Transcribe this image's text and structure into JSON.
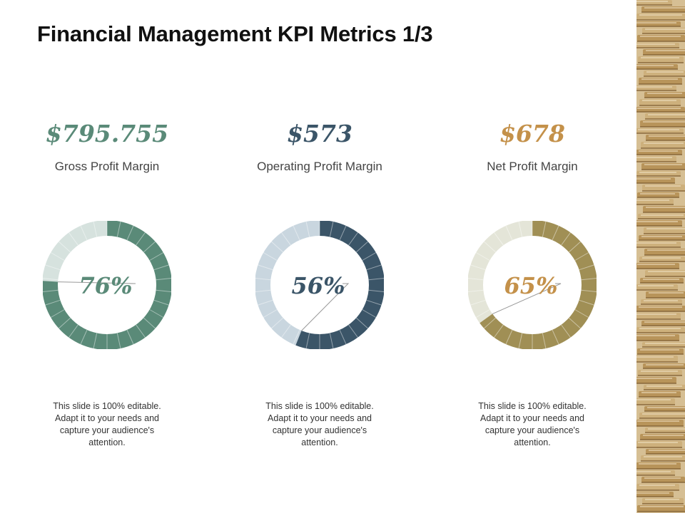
{
  "slide": {
    "title": "Financial Management KPI Metrics 1/3"
  },
  "kpis": [
    {
      "value": "$795.755",
      "label": "Gross Profit Margin",
      "percent_label": "76%",
      "description": "This slide is 100% editable. Adapt it to your needs and capture your audience's attention.",
      "color": "#5a8a78",
      "track_color": "#d6e2de"
    },
    {
      "value": "$573",
      "label": "Operating  Profit Margin",
      "percent_label": "56%",
      "description": "This slide is 100% editable. Adapt it to your needs and capture your audience's attention.",
      "color": "#3b5568",
      "track_color": "#c9d6df"
    },
    {
      "value": "$678",
      "label": "Net Profit Margin",
      "percent_label": "65%",
      "description": "This slide is 100% editable. Adapt it to your needs and capture your audience's attention.",
      "color": "#a08f55",
      "track_color": "#e4e5d8",
      "value_color": "#c4914a"
    }
  ],
  "chart_data": [
    {
      "type": "pie",
      "values": [
        76,
        24
      ]
    },
    {
      "type": "pie",
      "values": [
        56,
        44
      ]
    },
    {
      "type": "pie",
      "values": [
        65,
        35
      ]
    }
  ],
  "decor": {
    "coin_image": "coins-stack-image",
    "coin_color": "#b8945a"
  }
}
